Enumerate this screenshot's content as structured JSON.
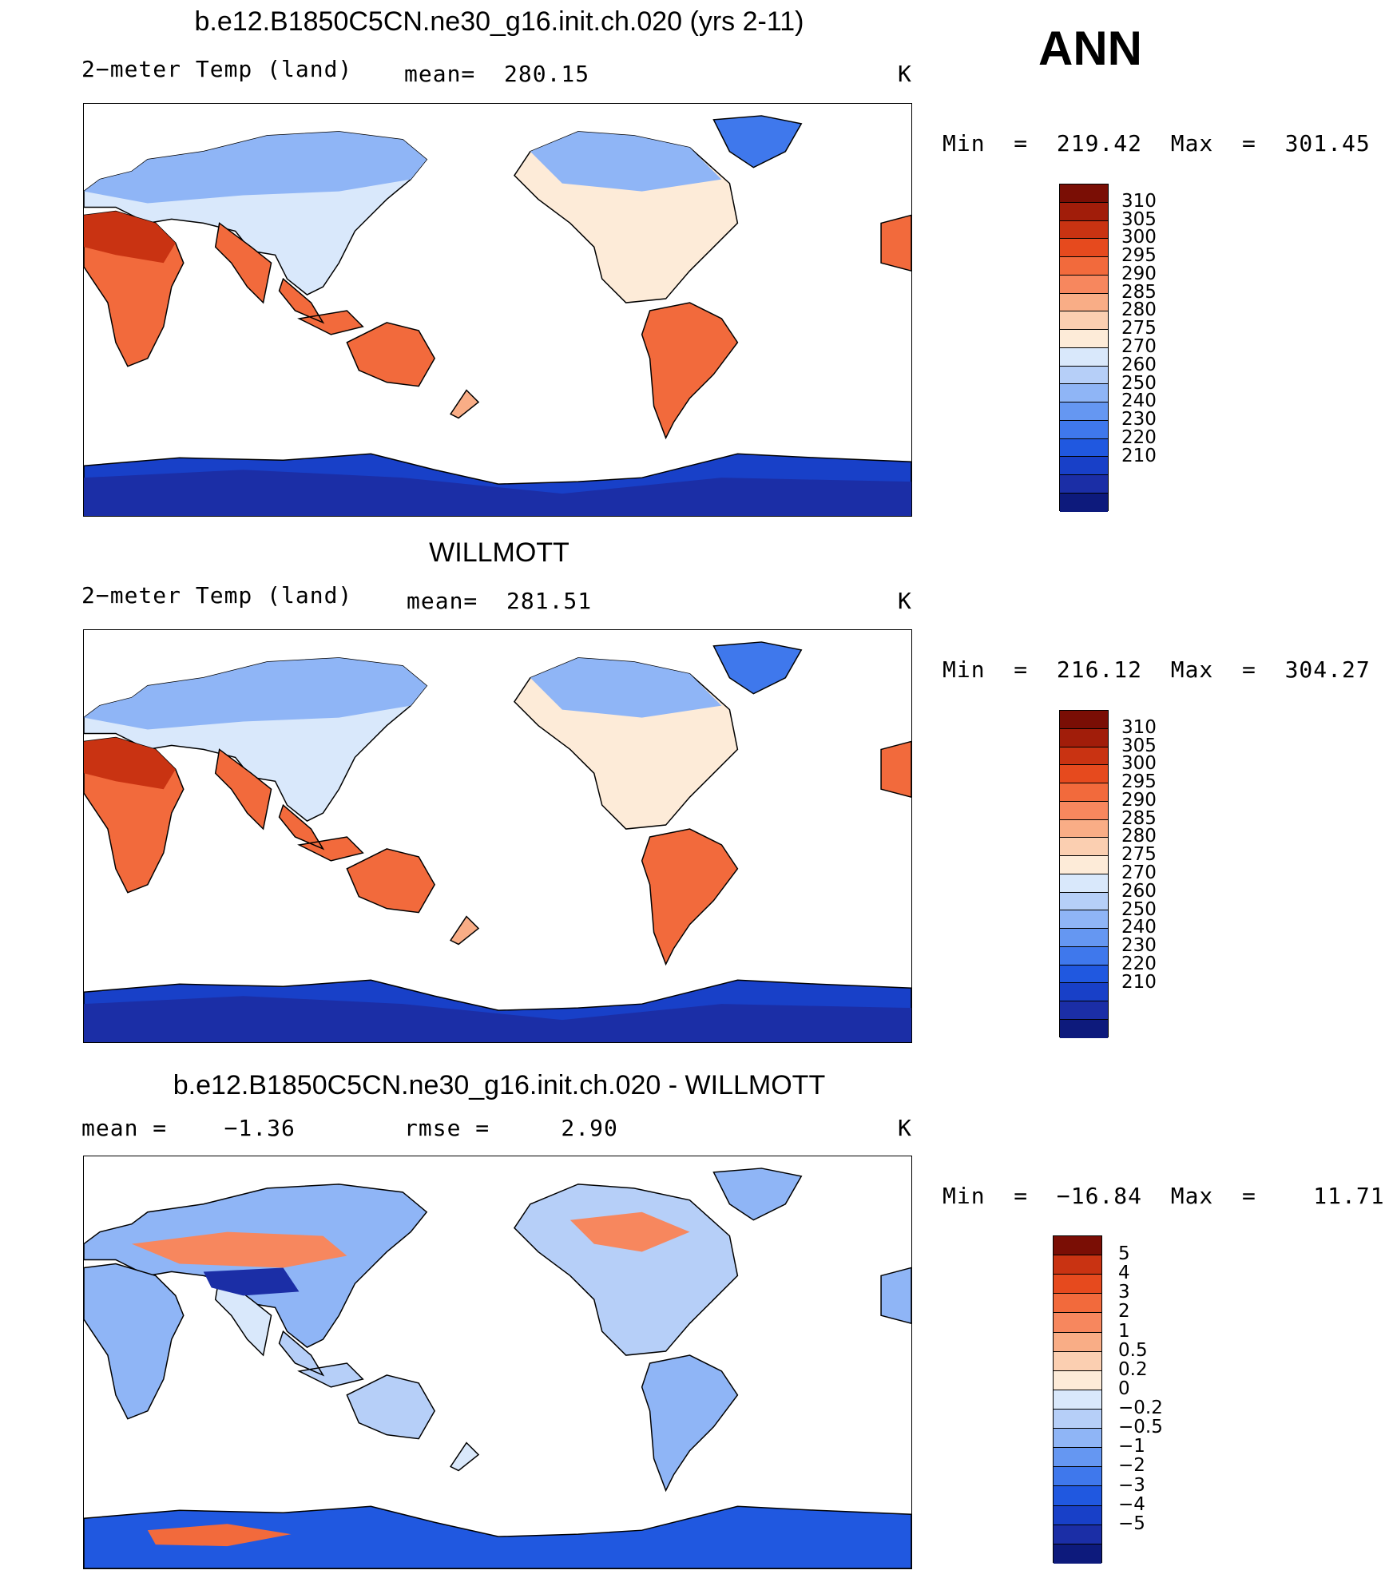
{
  "season": "ANN",
  "palettes": {
    "abs": [
      "#0d1a7c",
      "#1b2ea6",
      "#1840c8",
      "#2058e0",
      "#3f78ec",
      "#6597f2",
      "#8fb5f6",
      "#b6cff8",
      "#d9e8fb",
      "#fdebd8",
      "#fbcfb1",
      "#f9ad86",
      "#f7875e",
      "#f26a3c",
      "#e64a1e",
      "#c93312",
      "#a11d0a",
      "#7a0e05"
    ],
    "diff": [
      "#0d1a7c",
      "#1b2ea6",
      "#1840c8",
      "#2058e0",
      "#3f78ec",
      "#6597f2",
      "#8fb5f6",
      "#b6cff8",
      "#d9e8fb",
      "#fdebd8",
      "#fbcfb1",
      "#f9ad86",
      "#f7875e",
      "#f26a3c",
      "#e64a1e",
      "#c93312",
      "#7a0e05"
    ]
  },
  "panels": [
    {
      "title": "b.e12.B1850C5CN.ne30_g16.init.ch.020 (yrs 2-11)",
      "left_label": "2−meter Temp (land)",
      "center_label": "mean=  280.15",
      "units": "K",
      "minmax": "Min  =  219.42  Max  =  301.45",
      "field": "model",
      "colorbar_labels": [
        "310",
        "305",
        "300",
        "295",
        "290",
        "285",
        "280",
        "275",
        "270",
        "260",
        "250",
        "240",
        "230",
        "220",
        "210"
      ]
    },
    {
      "title": "WILLMOTT",
      "left_label": "2−meter Temp (land)",
      "center_label": "mean=  281.51",
      "units": "K",
      "minmax": "Min  =  216.12  Max  =  304.27",
      "field": "obs",
      "colorbar_labels": [
        "310",
        "305",
        "300",
        "295",
        "290",
        "285",
        "280",
        "275",
        "270",
        "260",
        "250",
        "240",
        "230",
        "220",
        "210"
      ]
    },
    {
      "title": "b.e12.B1850C5CN.ne30_g16.init.ch.020 - WILLMOTT",
      "left_label": "mean =    −1.36",
      "center_label": "rmse =     2.90",
      "units": "K",
      "minmax": "Min  =  −16.84  Max  =    11.71",
      "field": "diff",
      "colorbar_labels": [
        "5",
        "4",
        "3",
        "2",
        "1",
        "0.5",
        "0.2",
        "0",
        "−0.2",
        "−0.5",
        "−1",
        "−2",
        "−3",
        "−4",
        "−5"
      ]
    }
  ]
}
